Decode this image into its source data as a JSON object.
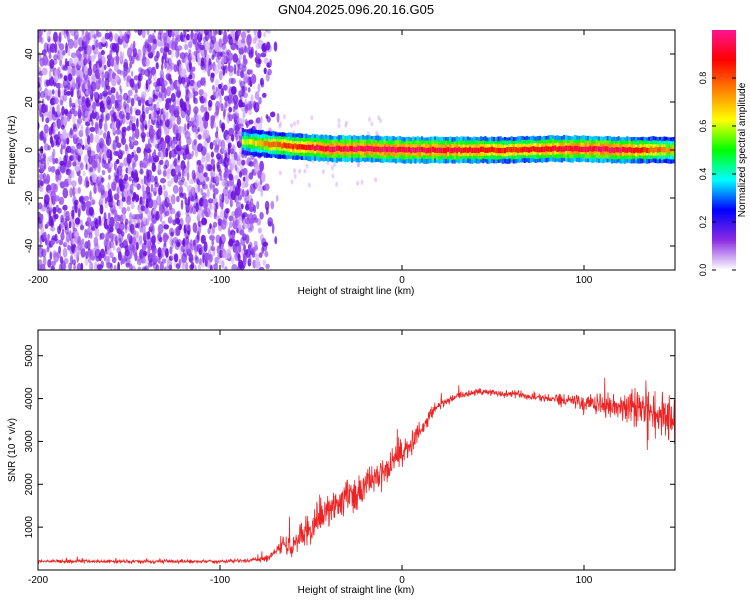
{
  "title": "GN04.2025.096.20.16.G05",
  "chart_data": [
    {
      "type": "heatmap",
      "xlabel": "Height of straight line (km)",
      "ylabel": "Frequency (Hz)",
      "xlim": [
        -200,
        150
      ],
      "ylim": [
        -50,
        50
      ],
      "xticks": [
        -200,
        -100,
        0,
        100
      ],
      "yticks": [
        -40,
        -20,
        0,
        20,
        40
      ],
      "colorbar": {
        "label": "Normalized spectral amplitude",
        "range": [
          0,
          1
        ],
        "ticks": [
          0.0,
          0.2,
          0.4,
          0.6,
          0.8
        ],
        "tick_labels": [
          "0.0",
          "0.2",
          "0.4",
          "0.6",
          "0.8"
        ],
        "colors": [
          "#ffffff",
          "#8a2be2",
          "#0000ff",
          "#00ffff",
          "#00ff00",
          "#ffff00",
          "#ff8000",
          "#ff0000",
          "#ff1493"
        ]
      },
      "noise_region_x": [
        -200,
        -78
      ],
      "noise_region_amplitude": 0.15,
      "signal_track": {
        "x": [
          -88,
          -75,
          -60,
          -40,
          -20,
          0,
          20,
          40,
          60,
          80,
          100,
          120,
          150
        ],
        "y": [
          3.5,
          2.5,
          1.5,
          0.5,
          0.5,
          0,
          0,
          0,
          0,
          0.5,
          0.5,
          0,
          0
        ],
        "peak_amplitude": [
          0.6,
          0.75,
          0.85,
          0.95,
          0.95,
          0.95,
          0.95,
          0.9,
          0.85,
          0.9,
          0.95,
          0.95,
          0.7
        ]
      }
    },
    {
      "type": "line",
      "xlabel": "Height of straight line (km)",
      "ylabel": "SNR (10 * v/v)",
      "xlim": [
        -200,
        150
      ],
      "ylim": [
        0,
        5600
      ],
      "xticks": [
        -200,
        -100,
        0,
        100
      ],
      "yticks": [
        1000,
        2000,
        3000,
        4000,
        5000
      ],
      "color": "#ee2222",
      "series": [
        {
          "x": [
            -200,
            -180,
            -160,
            -140,
            -120,
            -100,
            -85,
            -75,
            -70,
            -65,
            -60,
            -55,
            -50,
            -45,
            -40,
            -35,
            -30,
            -25,
            -20,
            -15,
            -10,
            -5,
            0,
            5,
            10,
            15,
            20,
            25,
            30,
            35,
            40,
            45,
            50,
            55,
            60,
            65,
            70,
            75,
            80,
            85,
            90,
            95,
            100,
            105,
            110,
            115,
            120,
            125,
            130,
            135,
            140,
            145,
            150
          ],
          "y": [
            200,
            200,
            200,
            200,
            200,
            200,
            220,
            260,
            380,
            520,
            620,
            820,
            1000,
            1250,
            1450,
            1550,
            1700,
            1800,
            1950,
            2150,
            2250,
            2500,
            2750,
            2950,
            3250,
            3600,
            3850,
            3950,
            4050,
            4100,
            4150,
            4150,
            4150,
            4100,
            4100,
            4100,
            4050,
            4050,
            4000,
            4000,
            3950,
            3950,
            3900,
            3900,
            3850,
            3850,
            3800,
            3750,
            3750,
            3700,
            3650,
            3600,
            3500
          ],
          "spread": [
            70,
            70,
            70,
            70,
            70,
            70,
            90,
            120,
            250,
            420,
            520,
            650,
            700,
            750,
            800,
            800,
            800,
            750,
            700,
            650,
            600,
            550,
            500,
            420,
            350,
            280,
            220,
            180,
            160,
            150,
            150,
            150,
            150,
            150,
            150,
            150,
            160,
            180,
            200,
            220,
            250,
            300,
            350,
            420,
            480,
            550,
            650,
            750,
            850,
            950,
            1050,
            1100,
            1100
          ]
        }
      ]
    }
  ]
}
